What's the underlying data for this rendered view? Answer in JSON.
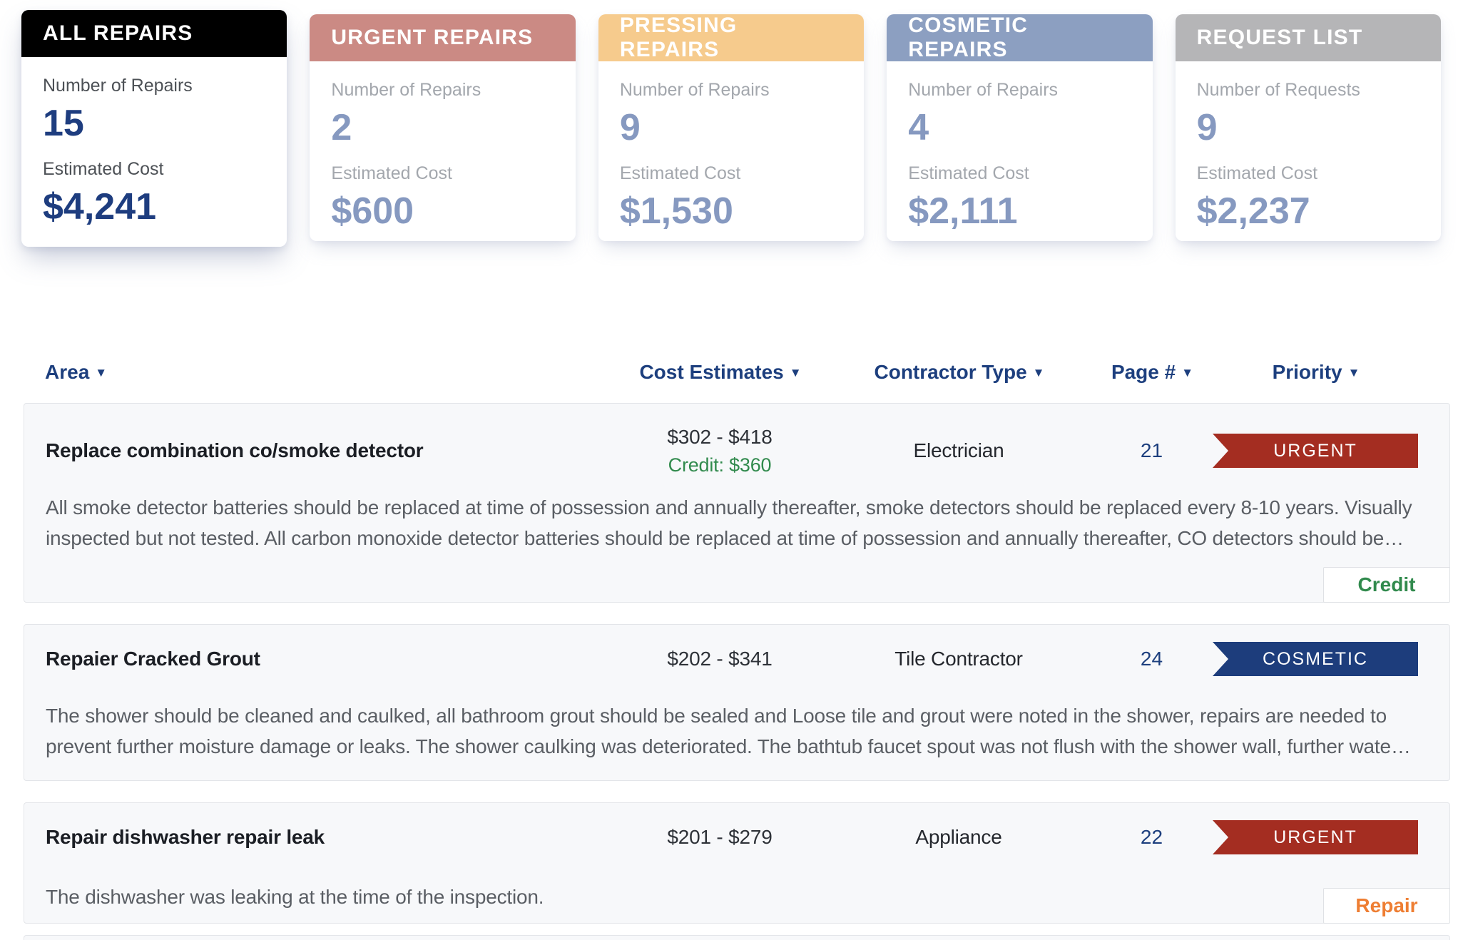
{
  "colors": {
    "accent_navy": "#1d3f7e",
    "urgent_red": "#a42d21",
    "cosmetic_blue": "#1d3d7c",
    "credit_green": "#318a4d",
    "repair_orange": "#ee7e33"
  },
  "summary_cards": [
    {
      "title": "ALL REPAIRS",
      "header_color": "#000000",
      "count_label": "Number of Repairs",
      "count": "15",
      "cost_label": "Estimated Cost",
      "cost": "$4,241"
    },
    {
      "title": "URGENT REPAIRS",
      "header_color": "#cb8a84",
      "count_label": "Number of Repairs",
      "count": "2",
      "cost_label": "Estimated Cost",
      "cost": "$600"
    },
    {
      "title": "PRESSING REPAIRS",
      "header_color": "#f6cb8d",
      "count_label": "Number of Repairs",
      "count": "9",
      "cost_label": "Estimated Cost",
      "cost": "$1,530"
    },
    {
      "title": "COSMETIC REPAIRS",
      "header_color": "#8c9fc1",
      "count_label": "Number of Repairs",
      "count": "4",
      "cost_label": "Estimated Cost",
      "cost": "$2,111"
    },
    {
      "title": "REQUEST LIST",
      "header_color": "#b5b5b7",
      "count_label": "Number of Requests",
      "count": "9",
      "cost_label": "Estimated Cost",
      "cost": "$2,237"
    }
  ],
  "table_header": {
    "area": "Area",
    "cost": "Cost Estimates",
    "contractor": "Contractor Type",
    "page": "Page #",
    "priority": "Priority",
    "sort_icon": "▼"
  },
  "rows": [
    {
      "title": "Replace combination co/smoke detector",
      "cost_range": "$302 - $418",
      "credit": "Credit: $360",
      "contractor": "Electrician",
      "page": "21",
      "priority": "URGENT",
      "priority_color": "#a42d21",
      "description": "All smoke detector batteries should be replaced at time of possession and annually thereafter, smoke detectors should be replaced every 8-10 years. Visually inspected but not tested. All carbon monoxide detector batteries should be replaced at time of possession and annually thereafter, CO detectors should be…",
      "tag": "Credit",
      "tag_color": "#318a4d"
    },
    {
      "title": "Repaier Cracked Grout",
      "cost_range": "$202 - $341",
      "contractor": "Tile Contractor",
      "page": "24",
      "priority": "COSMETIC",
      "priority_color": "#1d3d7c",
      "description": "The shower should be cleaned and caulked, all bathroom grout should be sealed and Loose tile and grout were noted in the shower, repairs are needed to prevent further moisture damage or leaks. The shower caulking was deteriorated. The bathtub faucet spout was not flush with the shower wall, further wate…"
    },
    {
      "title": "Repair dishwasher repair leak",
      "cost_range": "$201 - $279",
      "contractor": "Appliance",
      "page": "22",
      "priority": "URGENT",
      "priority_color": "#a42d21",
      "description": "The dishwasher was leaking at the time of the inspection.",
      "tag": "Repair",
      "tag_color": "#ee7e33"
    }
  ]
}
